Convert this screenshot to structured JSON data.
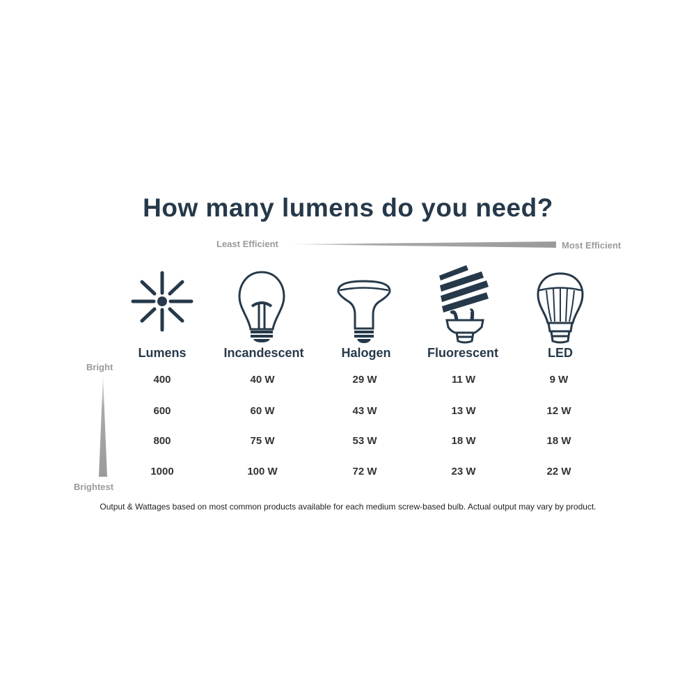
{
  "title": "How many lumens do you need?",
  "efficiency_scale": {
    "left_label": "Least Efficient",
    "right_label": "Most Efficient"
  },
  "brightness_scale": {
    "top_label": "Bright",
    "bottom_label": "Brightest"
  },
  "colors": {
    "primary": "#26394a",
    "scale_gray": "#9a9a9a"
  },
  "chart_data": {
    "type": "table",
    "title": "How many lumens do you need?",
    "columns": [
      {
        "label": "Lumens",
        "icon": "light-rays-icon"
      },
      {
        "label": "Incandescent",
        "icon": "incandescent-bulb-icon"
      },
      {
        "label": "Halogen",
        "icon": "halogen-bulb-icon"
      },
      {
        "label": "Fluorescent",
        "icon": "fluorescent-bulb-icon"
      },
      {
        "label": "LED",
        "icon": "led-bulb-icon"
      }
    ],
    "rows": [
      [
        "400",
        "40 W",
        "29 W",
        "11 W",
        "9 W"
      ],
      [
        "600",
        "60 W",
        "43 W",
        "13 W",
        "12 W"
      ],
      [
        "800",
        "75 W",
        "53 W",
        "18 W",
        "18 W"
      ],
      [
        "1000",
        "100 W",
        "72 W",
        "23 W",
        "22 W"
      ]
    ]
  },
  "footnote": "Output & Wattages based on most common products available for each medium screw-based bulb. Actual output may vary by product."
}
